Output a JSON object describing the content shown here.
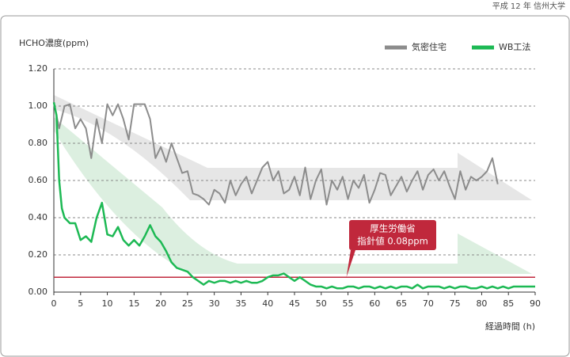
{
  "source": "平成 12 年 信州大学",
  "chart_data": {
    "type": "line",
    "ylabel": "HCHO濃度(ppm)",
    "xlabel": "経過時間 (h)",
    "xlim": [
      0,
      90
    ],
    "xticks": [
      0,
      5,
      10,
      15,
      20,
      25,
      30,
      35,
      40,
      45,
      50,
      55,
      60,
      65,
      70,
      75,
      80,
      85,
      90
    ],
    "ylim": [
      0,
      1.2
    ],
    "yticks": [
      {
        "value": 0,
        "label": "0.00"
      },
      {
        "value": 0.2,
        "label": "0.20"
      },
      {
        "value": 0.4,
        "label": "0.40"
      },
      {
        "value": 0.6,
        "label": "0.60"
      },
      {
        "value": 0.8,
        "label": "0.80"
      },
      {
        "value": 1.0,
        "label": "1.00"
      },
      {
        "value": 1.2,
        "label": "1.20"
      }
    ],
    "grid": true,
    "legend": "top-right",
    "reference_line": {
      "value": 0.08,
      "color": "#c0283c",
      "label_lines": [
        "厚生労働省",
        "指針値 0.08ppm"
      ]
    },
    "series": [
      {
        "name": "気密住宅",
        "color": "#8c8c8c",
        "x": [
          0,
          1,
          2,
          3,
          4,
          5,
          6,
          7,
          8,
          9,
          10,
          11,
          12,
          13,
          14,
          15,
          16,
          17,
          18,
          19,
          20,
          21,
          22,
          23,
          24,
          25,
          26,
          27,
          28,
          29,
          30,
          31,
          32,
          33,
          34,
          35,
          36,
          37,
          38,
          39,
          40,
          41,
          42,
          43,
          44,
          45,
          46,
          47,
          48,
          49,
          50,
          51,
          52,
          53,
          54,
          55,
          56,
          57,
          58,
          59,
          60,
          61,
          62,
          63,
          64,
          65,
          66,
          67,
          68,
          69,
          70,
          71,
          72,
          73,
          74,
          75,
          76,
          77,
          78,
          79,
          80,
          81,
          82,
          83
        ],
        "values": [
          1.02,
          0.88,
          1.0,
          1.01,
          0.88,
          0.93,
          0.88,
          0.72,
          0.93,
          0.8,
          1.01,
          0.95,
          1.01,
          0.93,
          0.82,
          1.01,
          1.01,
          1.01,
          0.93,
          0.72,
          0.78,
          0.7,
          0.8,
          0.72,
          0.64,
          0.65,
          0.53,
          0.52,
          0.5,
          0.47,
          0.55,
          0.53,
          0.48,
          0.6,
          0.52,
          0.58,
          0.62,
          0.53,
          0.6,
          0.67,
          0.7,
          0.6,
          0.65,
          0.53,
          0.55,
          0.62,
          0.52,
          0.67,
          0.5,
          0.6,
          0.66,
          0.47,
          0.6,
          0.55,
          0.62,
          0.5,
          0.6,
          0.56,
          0.63,
          0.48,
          0.55,
          0.64,
          0.63,
          0.52,
          0.57,
          0.62,
          0.54,
          0.6,
          0.65,
          0.55,
          0.63,
          0.66,
          0.6,
          0.65,
          0.57,
          0.5,
          0.65,
          0.55,
          0.62,
          0.6,
          0.62,
          0.65,
          0.72,
          0.58
        ]
      },
      {
        "name": "WB工法",
        "color": "#1db954",
        "x": [
          0,
          0.5,
          1,
          1.5,
          2,
          3,
          4,
          5,
          6,
          7,
          8,
          9,
          10,
          11,
          12,
          13,
          14,
          15,
          16,
          17,
          18,
          19,
          20,
          21,
          22,
          23,
          24,
          25,
          26,
          27,
          28,
          29,
          30,
          31,
          32,
          33,
          34,
          35,
          36,
          37,
          38,
          39,
          40,
          41,
          42,
          43,
          44,
          45,
          46,
          47,
          48,
          49,
          50,
          51,
          52,
          53,
          54,
          55,
          56,
          57,
          58,
          59,
          60,
          61,
          62,
          63,
          64,
          65,
          66,
          67,
          68,
          69,
          70,
          71,
          72,
          73,
          74,
          75,
          76,
          77,
          78,
          79,
          80,
          81,
          82,
          83,
          84,
          85,
          86,
          87,
          88,
          89,
          90
        ],
        "values": [
          1.02,
          0.95,
          0.6,
          0.45,
          0.4,
          0.37,
          0.37,
          0.28,
          0.3,
          0.27,
          0.4,
          0.48,
          0.31,
          0.3,
          0.35,
          0.28,
          0.25,
          0.28,
          0.25,
          0.3,
          0.36,
          0.3,
          0.27,
          0.22,
          0.16,
          0.13,
          0.12,
          0.11,
          0.08,
          0.06,
          0.04,
          0.06,
          0.05,
          0.06,
          0.06,
          0.05,
          0.06,
          0.05,
          0.06,
          0.05,
          0.05,
          0.06,
          0.08,
          0.09,
          0.09,
          0.1,
          0.08,
          0.06,
          0.08,
          0.06,
          0.04,
          0.03,
          0.03,
          0.02,
          0.03,
          0.02,
          0.02,
          0.03,
          0.03,
          0.02,
          0.03,
          0.03,
          0.02,
          0.03,
          0.02,
          0.03,
          0.02,
          0.03,
          0.03,
          0.02,
          0.04,
          0.02,
          0.03,
          0.03,
          0.03,
          0.02,
          0.03,
          0.02,
          0.03,
          0.03,
          0.02,
          0.02,
          0.03,
          0.02,
          0.03,
          0.02,
          0.03,
          0.02,
          0.03,
          0.03,
          0.03,
          0.03,
          0.03
        ]
      }
    ]
  }
}
